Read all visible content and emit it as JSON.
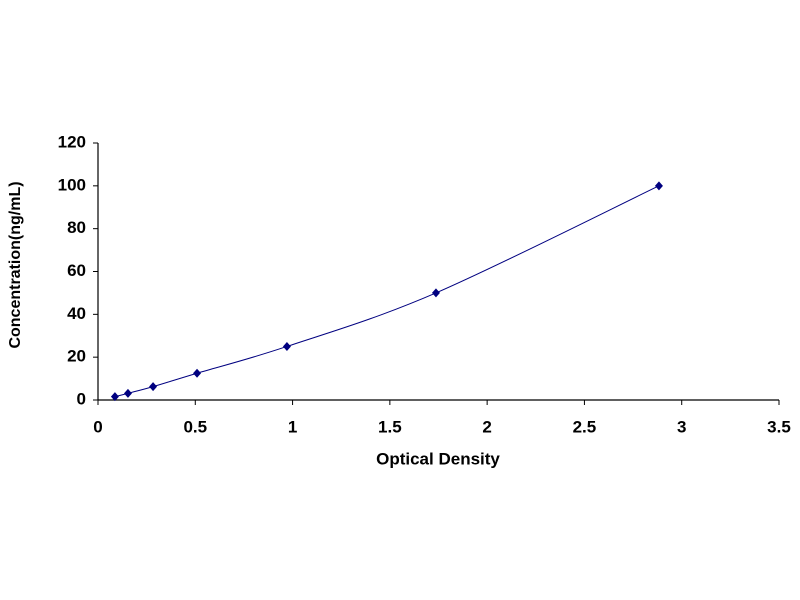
{
  "chart_data": {
    "type": "scatter",
    "xlabel": "Optical Density",
    "ylabel": "Concentration(ng/mL)",
    "x": [
      0.087,
      0.154,
      0.283,
      0.509,
      0.971,
      1.737,
      2.883
    ],
    "values": [
      1.56,
      3.12,
      6.25,
      12.5,
      25,
      50,
      100
    ],
    "color": "#000080",
    "line": true,
    "marker": "diamond",
    "xlim": [
      0,
      3.5
    ],
    "xticks": [
      0,
      0.5,
      1,
      1.5,
      2,
      2.5,
      3,
      3.5
    ],
    "ylim": [
      0,
      120
    ],
    "yticks": [
      0,
      20,
      40,
      60,
      80,
      100,
      120
    ],
    "grid": false
  }
}
